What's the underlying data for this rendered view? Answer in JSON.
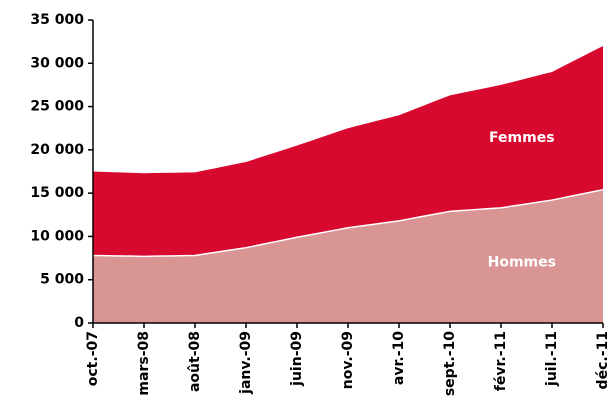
{
  "chart_data": {
    "type": "stacked-area",
    "categories": [
      "oct.-07",
      null,
      null,
      null,
      null,
      "mars-08",
      null,
      null,
      null,
      null,
      "août-08",
      null,
      null,
      null,
      null,
      "janv.-09",
      null,
      null,
      null,
      null,
      "juin-09",
      null,
      null,
      null,
      null,
      "nov.-09",
      null,
      null,
      null,
      null,
      "avr.-10",
      null,
      null,
      null,
      null,
      "sept.-10",
      null,
      null,
      null,
      null,
      "févr.-11",
      null,
      null,
      null,
      null,
      "juil.-11",
      null,
      null,
      null,
      null,
      "déc.-11"
    ],
    "series": [
      {
        "name": "Hommes",
        "color": "#d99593",
        "values": [
          7800,
          7780,
          7760,
          7740,
          7720,
          7700,
          7720,
          7740,
          7760,
          7780,
          7800,
          7980,
          8160,
          8340,
          8520,
          8700,
          8940,
          9180,
          9420,
          9660,
          9900,
          10120,
          10340,
          10560,
          10780,
          11000,
          11160,
          11320,
          11480,
          11640,
          11800,
          12020,
          12240,
          12460,
          12680,
          12900,
          12980,
          13060,
          13140,
          13220,
          13300,
          13480,
          13660,
          13840,
          14020,
          14200,
          14440,
          14680,
          14920,
          15160,
          15400
        ]
      },
      {
        "name": "Femmes",
        "color": "#d7092f",
        "values": [
          9700,
          9680,
          9660,
          9640,
          9620,
          9600,
          9600,
          9600,
          9600,
          9600,
          9600,
          9660,
          9720,
          9780,
          9840,
          9900,
          10040,
          10180,
          10320,
          10460,
          10600,
          10780,
          10960,
          11140,
          11320,
          11500,
          11640,
          11780,
          11920,
          12060,
          12200,
          12440,
          12680,
          12920,
          13160,
          13400,
          13560,
          13720,
          13880,
          14040,
          14200,
          14320,
          14440,
          14560,
          14680,
          14800,
          15160,
          15520,
          15880,
          16240,
          16600
        ]
      }
    ],
    "ylim": [
      0,
      35000
    ],
    "yticks": [
      0,
      {
        "value": 5000,
        "label": "5 000"
      },
      {
        "value": 10000,
        "label": "10 000"
      },
      {
        "value": 15000,
        "label": "15 000"
      },
      {
        "value": 20000,
        "label": "20 000"
      },
      {
        "value": 25000,
        "label": "25 000"
      },
      {
        "value": 30000,
        "label": "30 000"
      },
      {
        "value": 35000,
        "label": "35 000"
      }
    ],
    "grid": false
  }
}
